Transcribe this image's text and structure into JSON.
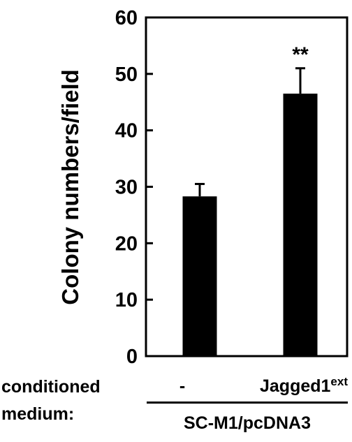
{
  "chart_data": {
    "type": "bar",
    "ylabel": "Colony numbers/field",
    "xlabel": "",
    "ylim": [
      0,
      60
    ],
    "yticks": [
      "0",
      "10",
      "20",
      "30",
      "40",
      "50",
      "60"
    ],
    "categories": [
      "-",
      "Jagged1ext"
    ],
    "category_labels": [
      {
        "main": "-",
        "sup": ""
      },
      {
        "main": "Jagged1",
        "sup": "ext"
      }
    ],
    "values": [
      28.3,
      46.5
    ],
    "errors": [
      2.2,
      4.5
    ],
    "annotations": [
      "",
      "**"
    ],
    "bar_color": "#000000",
    "grid": false,
    "legend": "none"
  },
  "footer": {
    "row_label_line1": "conditioned",
    "row_label_line2": "medium:",
    "group_label": "SC-M1/pcDNA3"
  }
}
